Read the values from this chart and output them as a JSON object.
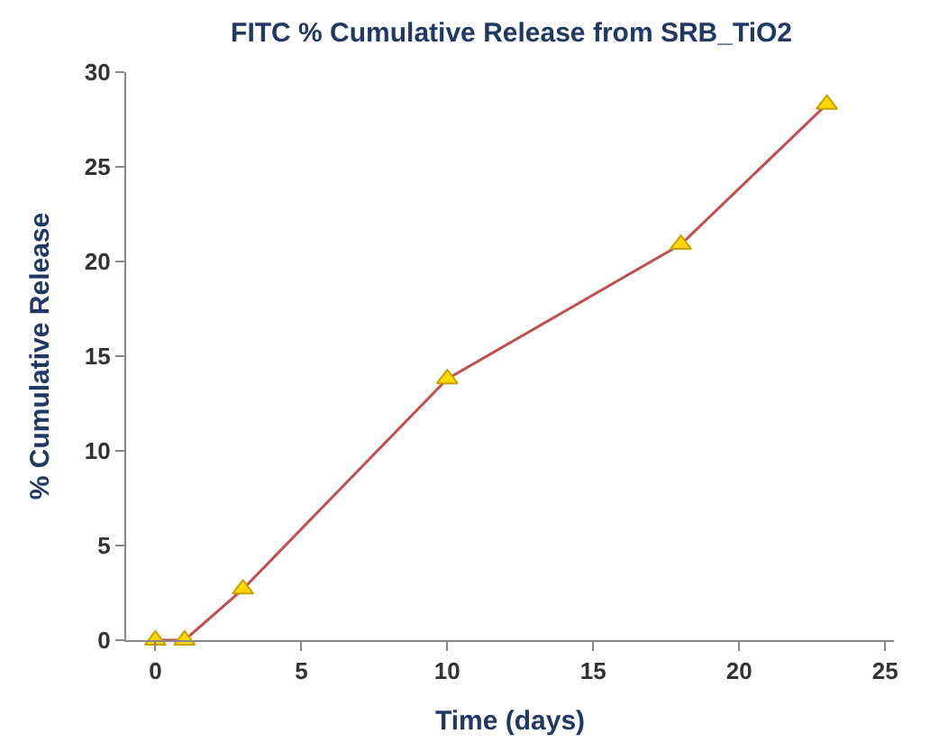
{
  "chart_data": {
    "type": "line",
    "title": "FITC % Cumulative Release from SRB_TiO2",
    "xlabel": "Time (days)",
    "ylabel": "% Cumulative Release",
    "x": [
      0,
      1,
      3,
      10,
      18,
      23
    ],
    "series": [
      {
        "color": "#c0504d",
        "values": [
          0,
          0,
          2.7,
          13.8,
          20.9,
          28.3
        ]
      }
    ],
    "xlim": [
      -1,
      25.3
    ],
    "xticks": [
      0,
      5,
      10,
      15,
      20,
      25
    ],
    "ylim": [
      0,
      30
    ],
    "yticks": [
      0,
      5,
      10,
      15,
      20,
      25,
      30
    ],
    "marker": "triangle"
  }
}
